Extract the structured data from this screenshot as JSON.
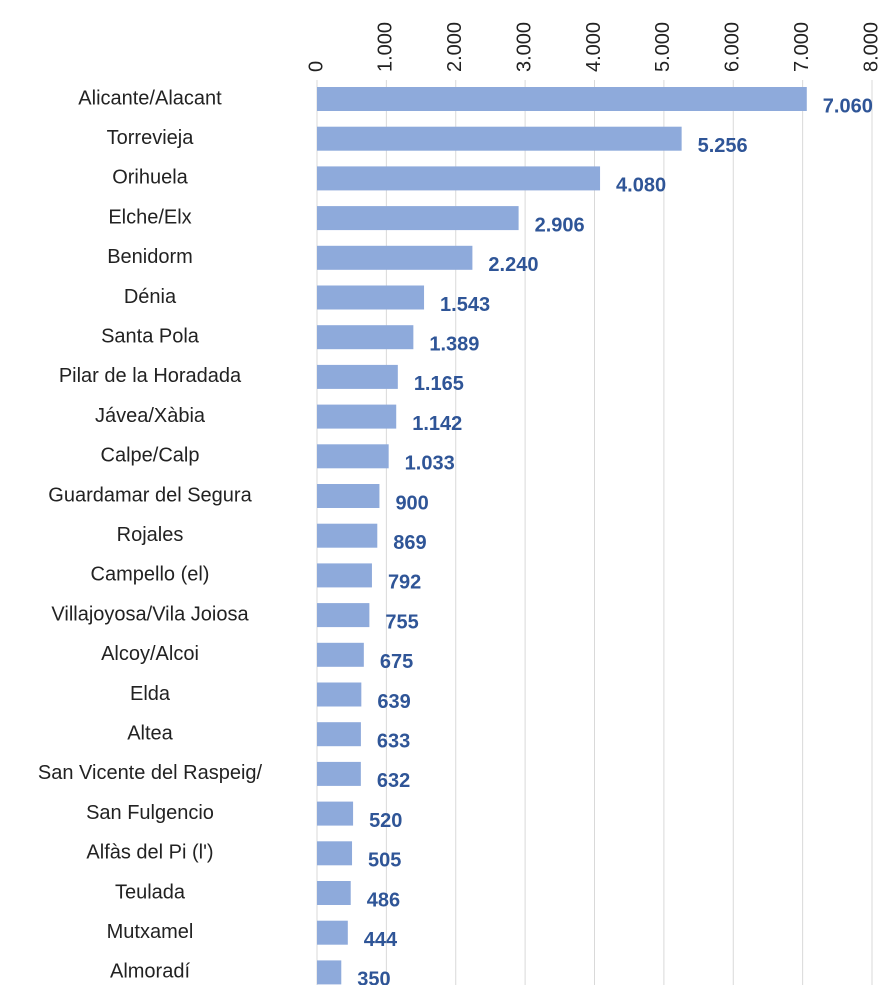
{
  "chart_data": {
    "type": "bar",
    "orientation": "horizontal",
    "categories": [
      "Alicante/Alacant",
      "Torrevieja",
      "Orihuela",
      "Elche/Elx",
      "Benidorm",
      "Dénia",
      "Santa Pola",
      "Pilar de la Horadada",
      "Jávea/Xàbia",
      "Calpe/Calp",
      "Guardamar del Segura",
      "Rojales",
      "Campello (el)",
      "Villajoyosa/Vila Joiosa",
      "Alcoy/Alcoi",
      "Elda",
      "Altea",
      "San Vicente del Raspeig/",
      "San Fulgencio",
      "Alfàs del Pi (l')",
      "Teulada",
      "Mutxamel",
      "Almoradí"
    ],
    "values": [
      7060,
      5256,
      4080,
      2906,
      2240,
      1543,
      1389,
      1165,
      1142,
      1033,
      900,
      869,
      792,
      755,
      675,
      639,
      633,
      632,
      520,
      505,
      486,
      444,
      350
    ],
    "value_labels": [
      "7.060",
      "5.256",
      "4.080",
      "2.906",
      "2.240",
      "1.543",
      "1.389",
      "1.165",
      "1.142",
      "1.033",
      "900",
      "869",
      "792",
      "755",
      "675",
      "639",
      "633",
      "632",
      "520",
      "505",
      "486",
      "444",
      "350"
    ],
    "color": "#8eaadb",
    "xlim": [
      0,
      8000
    ],
    "xticks": [
      0,
      {
        "value": 1000,
        "label": "1.000"
      },
      {
        "value": 2000,
        "label": "2.000"
      },
      {
        "value": 3000,
        "label": "3.000"
      },
      {
        "value": 4000,
        "label": "4.000"
      },
      {
        "value": 5000,
        "label": "5.000"
      },
      {
        "value": 6000,
        "label": "6.000"
      },
      {
        "value": 7000,
        "label": "7.000"
      },
      {
        "value": 8000,
        "label": "8.000"
      }
    ],
    "grid": true
  }
}
